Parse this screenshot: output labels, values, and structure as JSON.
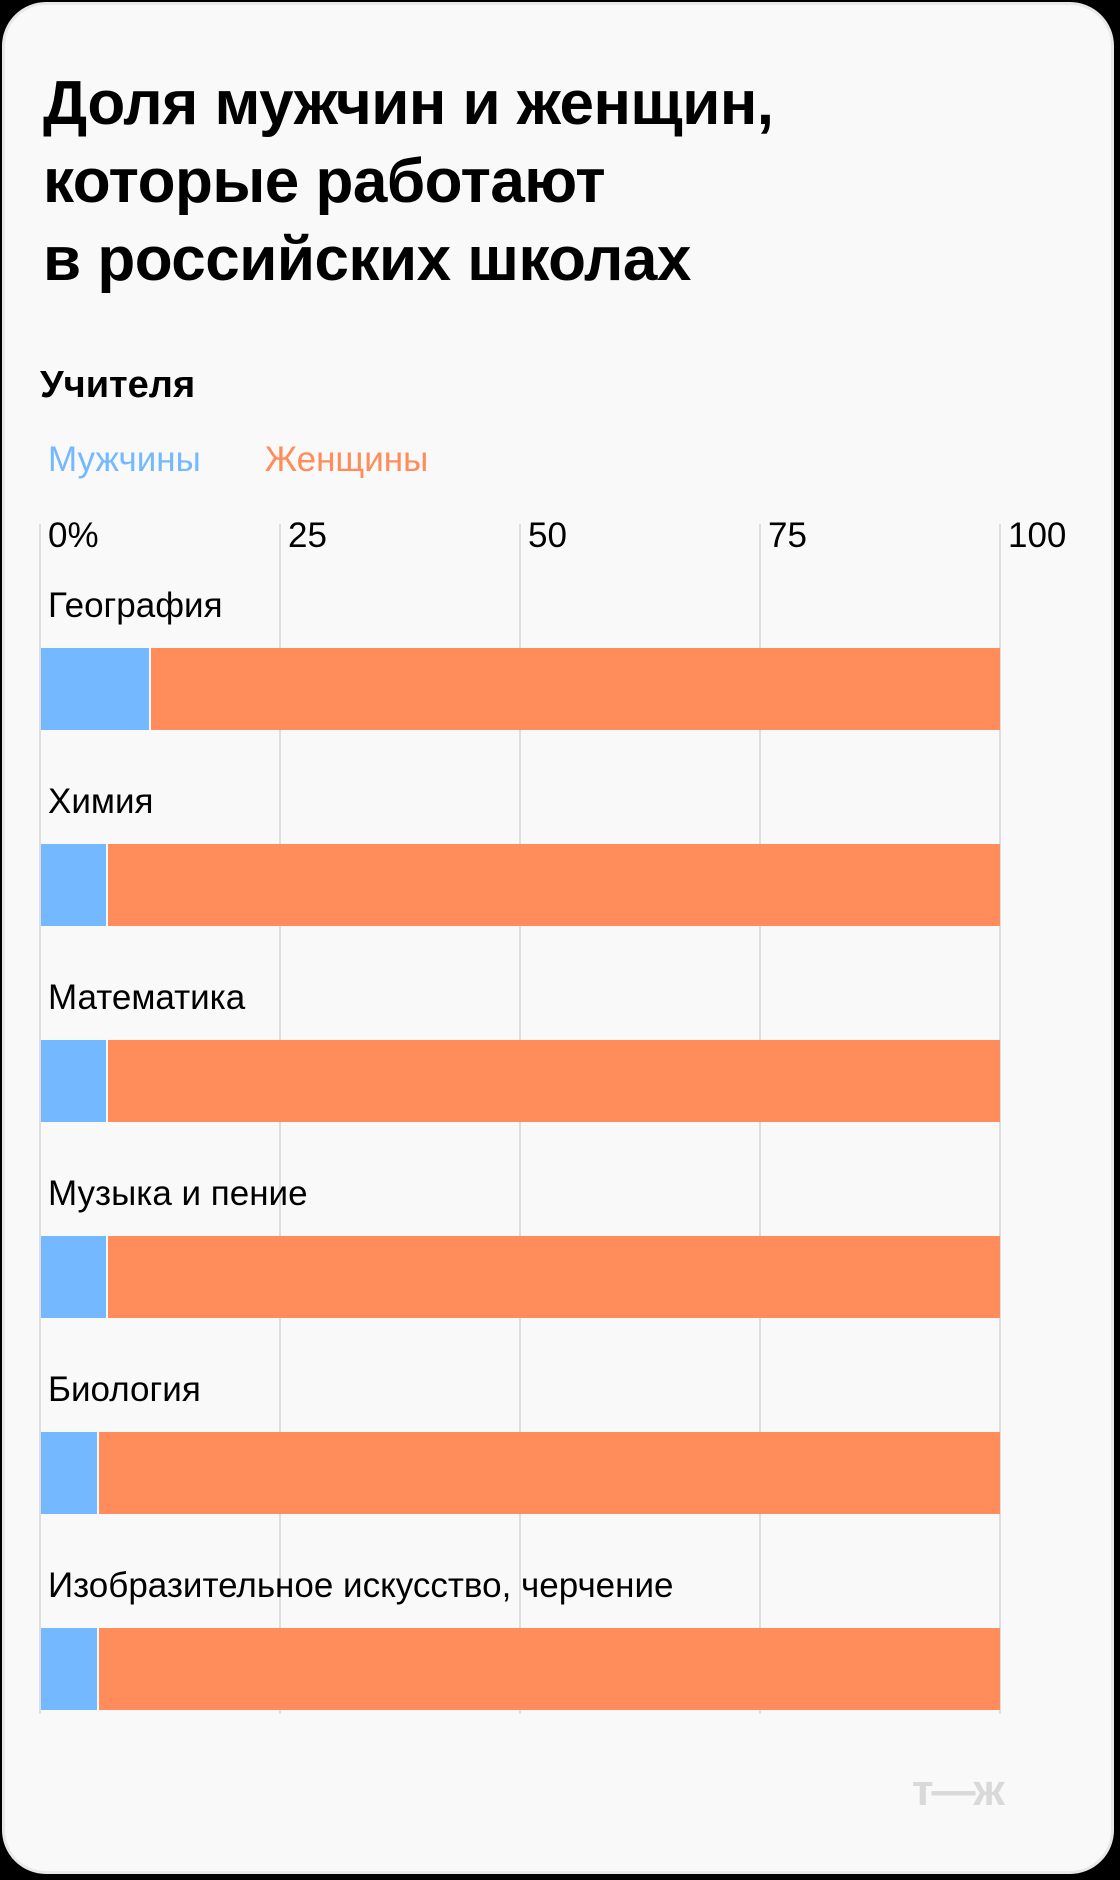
{
  "title_lines": [
    "Доля мужчин и женщин,",
    "которые работают",
    "в российских школах"
  ],
  "subtitle": "Учителя",
  "legend": [
    {
      "label": "Мужчины",
      "color": "#74b9ff"
    },
    {
      "label": "Женщины",
      "color": "#ff8c5a"
    }
  ],
  "axis": {
    "ticks": [
      "0%",
      "25",
      "50",
      "75",
      "100"
    ]
  },
  "logo": "т—ж",
  "chart_data": {
    "type": "bar",
    "orientation": "horizontal",
    "stacked": true,
    "title": "Доля мужчин и женщин, которые работают в российских школах",
    "subtitle": "Учителя",
    "categories": [
      "География",
      "Химия",
      "Математика",
      "Музыка и пение",
      "Биология",
      "Изобразительное искусство, черчение"
    ],
    "series": [
      {
        "name": "Мужчины",
        "color": "#74b9ff",
        "values": [
          11.5,
          7,
          7,
          7,
          6,
          6
        ]
      },
      {
        "name": "Женщины",
        "color": "#ff8c5a",
        "values": [
          88.5,
          93,
          93,
          93,
          94,
          94
        ]
      }
    ],
    "xlabel": "",
    "ylabel": "",
    "xlim": [
      0,
      100
    ],
    "x_ticks": [
      "0%",
      "25",
      "50",
      "75",
      "100"
    ],
    "grid": true,
    "legend_position": "top-left"
  }
}
